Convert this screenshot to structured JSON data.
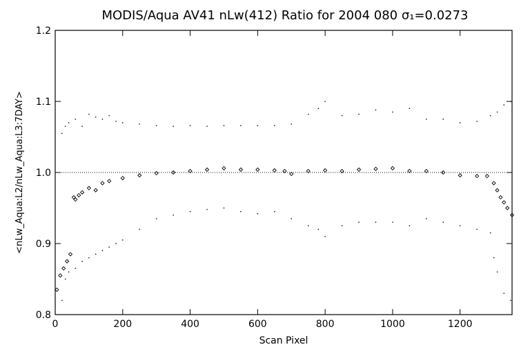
{
  "chart_data": {
    "type": "scatter",
    "title": "MODIS/Aqua AV41 nLw(412) Ratio for 2004 080 σ₁=0.0273",
    "xlabel": "Scan Pixel",
    "ylabel": "<nLw_Aqua:L2/nLw_Aqua:L3:7DAY>",
    "xlim": [
      0,
      1354
    ],
    "ylim": [
      0.8,
      1.2
    ],
    "xticks": [
      0,
      200,
      400,
      600,
      800,
      1000,
      1200
    ],
    "xtick_labels": [
      "0",
      "200",
      "400",
      "600",
      "800",
      "1000",
      "1200"
    ],
    "yticks": [
      0.8,
      0.9,
      1.0,
      1.1,
      1.2
    ],
    "ytick_labels": [
      "0.8",
      "0.9",
      "1.0",
      "1.1",
      "1.2"
    ],
    "reference_line": 1.0,
    "series": [
      {
        "marker": "diamond",
        "x": [
          5,
          15,
          25,
          35,
          45,
          55,
          60,
          70,
          80,
          100,
          120,
          140,
          160,
          200,
          250,
          300,
          350,
          400,
          450,
          500,
          550,
          600,
          650,
          680,
          700,
          750,
          800,
          850,
          900,
          950,
          1000,
          1050,
          1100,
          1150,
          1200,
          1250,
          1280,
          1300,
          1310,
          1320,
          1330,
          1340,
          1354
        ],
        "y": [
          0.835,
          0.855,
          0.865,
          0.875,
          0.885,
          0.965,
          0.962,
          0.968,
          0.972,
          0.978,
          0.975,
          0.985,
          0.988,
          0.992,
          0.996,
          0.999,
          1.0,
          1.002,
          1.004,
          1.006,
          1.004,
          1.004,
          1.003,
          1.002,
          0.998,
          1.002,
          1.003,
          1.002,
          1.004,
          1.005,
          1.006,
          1.002,
          1.002,
          1.0,
          0.996,
          0.995,
          0.995,
          0.985,
          0.975,
          0.965,
          0.958,
          0.95,
          0.94
        ]
      },
      {
        "marker": "dot",
        "x": [
          20,
          30,
          40,
          60,
          80,
          100,
          120,
          140,
          160,
          180,
          200,
          250,
          300,
          350,
          400,
          450,
          500,
          550,
          600,
          650,
          700,
          750,
          780,
          800,
          850,
          900,
          950,
          1000,
          1050,
          1100,
          1150,
          1200,
          1250,
          1290,
          1310,
          1330,
          1350
        ],
        "y": [
          1.055,
          1.065,
          1.07,
          1.075,
          1.065,
          1.082,
          1.078,
          1.075,
          1.08,
          1.072,
          1.07,
          1.068,
          1.066,
          1.065,
          1.066,
          1.065,
          1.066,
          1.066,
          1.066,
          1.066,
          1.068,
          1.082,
          1.09,
          1.1,
          1.08,
          1.082,
          1.088,
          1.085,
          1.09,
          1.075,
          1.075,
          1.07,
          1.072,
          1.08,
          1.085,
          1.095,
          1.1
        ]
      },
      {
        "marker": "dot",
        "x": [
          20,
          30,
          40,
          60,
          80,
          100,
          120,
          140,
          160,
          180,
          200,
          250,
          300,
          350,
          400,
          450,
          500,
          550,
          600,
          650,
          700,
          750,
          780,
          800,
          850,
          900,
          950,
          1000,
          1050,
          1100,
          1150,
          1200,
          1250,
          1290,
          1300,
          1310,
          1330,
          1350
        ],
        "y": [
          0.82,
          0.85,
          0.86,
          0.865,
          0.875,
          0.88,
          0.885,
          0.89,
          0.895,
          0.9,
          0.905,
          0.92,
          0.935,
          0.94,
          0.945,
          0.948,
          0.95,
          0.945,
          0.942,
          0.945,
          0.935,
          0.925,
          0.92,
          0.91,
          0.925,
          0.93,
          0.93,
          0.93,
          0.925,
          0.935,
          0.93,
          0.925,
          0.92,
          0.915,
          0.88,
          0.86,
          0.83,
          0.82
        ]
      }
    ]
  }
}
